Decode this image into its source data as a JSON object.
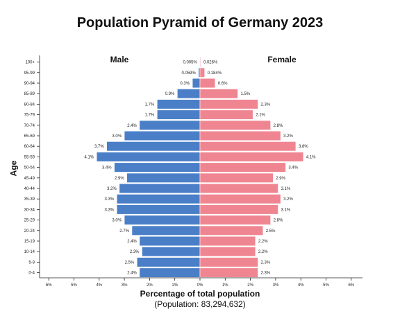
{
  "chart_data": {
    "type": "bar",
    "title": "Population Pyramid of Germany 2023",
    "xlabel": "Percentage of total population",
    "subtitle": "(Population: 83,294,632)",
    "ylabel": "Age",
    "xlim": [
      -6,
      6
    ],
    "x_ticks": [
      "6%",
      "5%",
      "4%",
      "3%",
      "2%",
      "1%",
      "0%",
      "1%",
      "2%",
      "3%",
      "4%",
      "5%",
      "6%"
    ],
    "categories": [
      "100+",
      "95-99",
      "90-94",
      "85-89",
      "80-84",
      "75-79",
      "70-74",
      "65-69",
      "60-64",
      "55-59",
      "50-54",
      "45-49",
      "40-44",
      "35-39",
      "30-34",
      "25-29",
      "20-24",
      "15-19",
      "10-14",
      "5-9",
      "0-4"
    ],
    "series": [
      {
        "name": "Male",
        "color": "#4a7fc8",
        "values": [
          0.005,
          0.059,
          0.3,
          0.9,
          1.7,
          1.7,
          2.4,
          3.0,
          3.7,
          4.1,
          3.4,
          2.9,
          3.2,
          3.3,
          3.3,
          3.0,
          2.7,
          2.4,
          2.3,
          2.5,
          2.4
        ],
        "labels": [
          "0.005%",
          "0.059%",
          "0.3%",
          "0.9%",
          "1.7%",
          "1.7%",
          "2.4%",
          "3.0%",
          "3.7%",
          "4.1%",
          "3.4%",
          "2.9%",
          "3.2%",
          "3.3%",
          "3.3%",
          "3.0%",
          "2.7%",
          "2.4%",
          "2.3%",
          "2.5%",
          "2.4%"
        ]
      },
      {
        "name": "Female",
        "color": "#f08592",
        "values": [
          0.026,
          0.184,
          0.6,
          1.5,
          2.3,
          2.1,
          2.8,
          3.2,
          3.8,
          4.1,
          3.4,
          2.9,
          3.1,
          3.2,
          3.1,
          2.8,
          2.5,
          2.2,
          2.2,
          2.3,
          2.3
        ],
        "labels": [
          "0.026%",
          "0.184%",
          "0.6%",
          "1.5%",
          "2.3%",
          "2.1%",
          "2.8%",
          "3.2%",
          "3.8%",
          "4.1%",
          "3.4%",
          "2.9%",
          "3.1%",
          "3.2%",
          "3.1%",
          "2.8%",
          "2.5%",
          "2.2%",
          "2.2%",
          "2.3%",
          "2.3%"
        ]
      }
    ],
    "grid": false,
    "legend": "series names above bars"
  }
}
